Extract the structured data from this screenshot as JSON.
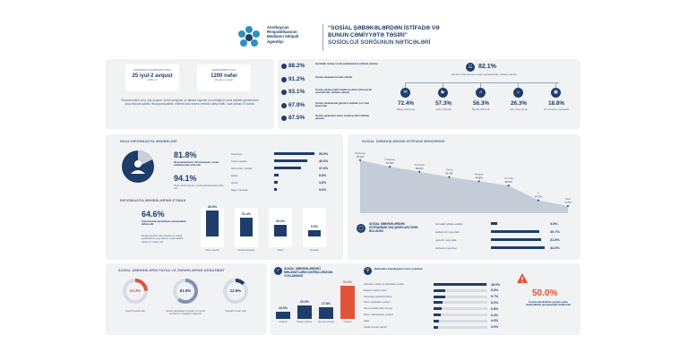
{
  "header": {
    "agency_line1": "Azərbaycan",
    "agency_line2": "Respublikasının",
    "agency_line3": "Medianın İnkişafı",
    "agency_line4": "Agentliyi",
    "title_line1": "“SOSİAL ŞƏBƏKƏLƏRDƏN İSTİFADƏ VƏ",
    "title_line2": "BUNUN CƏMİYYƏTƏ TƏSİRİ”",
    "title_line3": "SOSİOLOJİ SORĞUNUN NƏTİCƏLƏRİ"
  },
  "survey_info": {
    "period_label": "SORĞUNUN KEÇİRİLMƏ TARİXİ",
    "period_value": "25 iyul-2 avqust",
    "period_year": "2025-ci il",
    "respondents_label": "RESPONDENT SAYI",
    "respondents_value": "1200 nəfər",
    "respondents_note": "18 yaş və yuxarı",
    "description": "Respondentlər cins, yaş qrupları, təhsil səviyyəsi və iqtisadi rayonlar üzrə bölgüsü rəsmi statistik göstəricilərə proporsional şəkildə müəyyənləşdirilib, ehtimal üzrə seçmə metodu tətbiq edilib. Xəta əmsalı ±3 faizdir."
  },
  "usage_stats": [
    {
      "value": "88.2%",
      "text": "Gündəlik olaraq sosial şəbəkələrdən istifadə edənlər"
    },
    {
      "value": "91.2%",
      "text": "Sosial şəbəkədə hesabı olanlar"
    },
    {
      "value": "93.1%",
      "text": "Sosial şəbəkə platformalarına daxil olmaq üçün smartfondan istifadə edənlər"
    },
    {
      "value": "67.9%",
      "text": "Sosial şəbəkələrdə gündə 2 saatdan çox vaxt keçirənlər"
    },
    {
      "value": "87.5%",
      "text": "Sosial şəbəkələri xəbər mənbəyi kimi istifadə edənlər"
    }
  ],
  "purpose": {
    "main_value": "82.1%",
    "main_text": "Xəbərləri izləmək üçün sosial şəbəkələrdən istifadə edənlər",
    "items": [
      {
        "value": "72.4%",
        "text": "Əlaqə saxlamaq",
        "icon": "chat-icon"
      },
      {
        "value": "57.3%",
        "text": "Video izləmək",
        "icon": "video-icon"
      },
      {
        "value": "56.3%",
        "text": "Musiqi dinləmək",
        "icon": "music-icon"
      },
      {
        "value": "26.3%",
        "text": "Alış-veriş etmək",
        "icon": "cart-icon"
      },
      {
        "value": "18.8%",
        "text": "İş və biznes məqsədilə",
        "icon": "briefcase-icon"
      }
    ]
  },
  "info_sources": {
    "title": "ƏSAS İNFORMASİYA MƏNBƏLƏRİ",
    "big_value": "81.8%",
    "big_text": "Respondentlərin informasiyanı sosial şəbəkələrdən əldə edir",
    "second_value": "94.1%",
    "second_text": "Əsas informasiyanı sosial şəbəkələrdən əldə edir",
    "rows": [
      {
        "label": "Televiziya",
        "value": 55.9,
        "text": "55.9%"
      },
      {
        "label": "Xəbər saytları",
        "value": 46.6,
        "text": "46.6%"
      },
      {
        "label": "Ailə üzvləri, dostlar",
        "value": 37.9,
        "text": "37.9%"
      },
      {
        "label": "Radio",
        "value": 5.8,
        "text": "5.8%"
      },
      {
        "label": "Qəzet",
        "value": 4.8,
        "text": "4.8%"
      },
      {
        "label": "Digər mənbələr",
        "value": 3.6,
        "text": "3.6%"
      }
    ]
  },
  "trust": {
    "title": "İNFORMASİYA MƏNBƏLƏRİNƏ ETİMAD",
    "big_value": "64.6%",
    "big_text": "Televiziyada yayımlanan məlumatlara etibar edir",
    "note": "Respondentlər televiziyada və sosial şəbəkələrdə yayımlanan məlumatlara daha çox etibar edir",
    "bars": [
      {
        "label": "Xəbər saytları",
        "value": 43.0,
        "text": "43.0%"
      },
      {
        "label": "Sosial şəbəkələr",
        "value": 31.4,
        "text": "31.4%"
      },
      {
        "label": "Radio",
        "value": 20.2,
        "text": "20.2%"
      },
      {
        "label": "Qəzetlər",
        "value": 9.9,
        "text": "9.9%"
      }
    ]
  },
  "activity": {
    "title": "SOSİAL ŞƏBƏKƏLƏRDƏN İSTİFADƏ MƏNZƏRƏSİ",
    "series": [
      {
        "label": "Whatsapp",
        "value": 78.2
      },
      {
        "label": "Instagram",
        "value": 67.8
      },
      {
        "label": "Facebook",
        "value": 59.8
      },
      {
        "label": "TikTok",
        "value": 51.5
      },
      {
        "label": "Telegram",
        "value": 44.8
      },
      {
        "label": "YouTube",
        "value": 38.0
      },
      {
        "label": "X",
        "value": 14.7
      },
      {
        "label": "Digər",
        "value": 5.7
      }
    ],
    "point_labels": [
      "78.2%",
      "67.8%",
      "59.8%",
      "51.5%",
      "44.8%",
      "38.0%",
      "14.7%",
      "5.7%"
    ]
  },
  "age_usage": {
    "title": "SOSİAL ŞƏBƏKƏLƏRDƏN İSTİFADƏNİN YAŞ QRUPLARI ÜZRƏ BÖLGÜSÜ",
    "rows": [
      {
        "label": "Gündəlik istifadə edənlər",
        "value": 3.8,
        "text": "3.8%"
      },
      {
        "label": "Həftədə bir neçə dəfə",
        "value": 30.7,
        "text": "30.7%"
      },
      {
        "label": "Ayda bir neçə dəfə",
        "value": 31.5,
        "text": "31.5%"
      },
      {
        "label": "İstifadə etməyənlər",
        "value": 34.0,
        "text": "34.0%"
      }
    ]
  },
  "benefit": {
    "title": "SOSİAL ŞƏBƏKƏLƏRİN FAYDA VƏ ZƏRƏRLƏRİNƏ MÜNASİBƏT",
    "donuts": [
      {
        "value": 24.3,
        "text": "24.3%",
        "label": "Zərərli hesab edir",
        "color": "#e0523a"
      },
      {
        "value": 61.0,
        "text": "61.0%",
        "label": "Sosial şəbəkələrin faydalı və zərərli tərəflərinin olduğunu düşünür",
        "color": "#7f93b3"
      },
      {
        "value": 12.9,
        "text": "12.9%",
        "label": "Faydalı hesab edir",
        "color": "#1e3d6b"
      }
    ]
  },
  "accuracy": {
    "title": "SOSİAL ŞƏBƏKƏLƏRDƏKİ MƏLUMATLARIN DOĞRULUĞUNUN YOXLANMASI",
    "bars": [
      {
        "label": "Yoxlamır",
        "value": 10.6,
        "text": "10.6%",
        "color": "#1e3d6b"
      },
      {
        "label": "Bəzən yoxlayır",
        "value": 20.9,
        "text": "20.9%",
        "color": "#1e3d6b"
      },
      {
        "label": "Həmişə yoxlayır",
        "value": 17.8,
        "text": "17.8%",
        "color": "#1e3d6b"
      },
      {
        "label": "Yoxlayır",
        "value": 50.6,
        "text": "50.6%",
        "color": "#e0523a"
      }
    ]
  },
  "verification": {
    "title": "Məlumatın doğruluğunun necə yoxlanılır",
    "rows": [
      {
        "label": "Alternativ mənbə və saytlardan yoxlayır",
        "value": 45.6,
        "text": "45.6%"
      },
      {
        "label": "Ekspert rəylərinə baxır",
        "value": 9.9,
        "text": "9.9%"
      },
      {
        "label": "Televiziya xəbərlərini izləyir",
        "value": 9.7,
        "text": "9.7%"
      },
      {
        "label": "Rəsmi saytlardan yoxlayır",
        "value": 8.0,
        "text": "8.0%"
      },
      {
        "label": "Ailə və dostlarından soruşur",
        "value": 6.8,
        "text": "6.8%"
      },
      {
        "label": "Rəsmi mənbələrdən yoxlayır",
        "value": 6.4,
        "text": "6.4%"
      },
      {
        "label": "Digər",
        "value": 4.9,
        "text": "4.9%"
      },
      {
        "label": "Cavab vermək çətindir",
        "value": 3.9,
        "text": "3.9%"
      }
    ]
  },
  "fake_news": {
    "value": "50.0%",
    "text": "Sosial şəbəkələrdə yayılan saxta məlumatlarla qarşılaşdığını bildirənlər"
  },
  "colors": {
    "navy": "#1e3d6b",
    "red": "#e0523a",
    "card": "#f1f2f4",
    "track": "#d7dce4"
  }
}
